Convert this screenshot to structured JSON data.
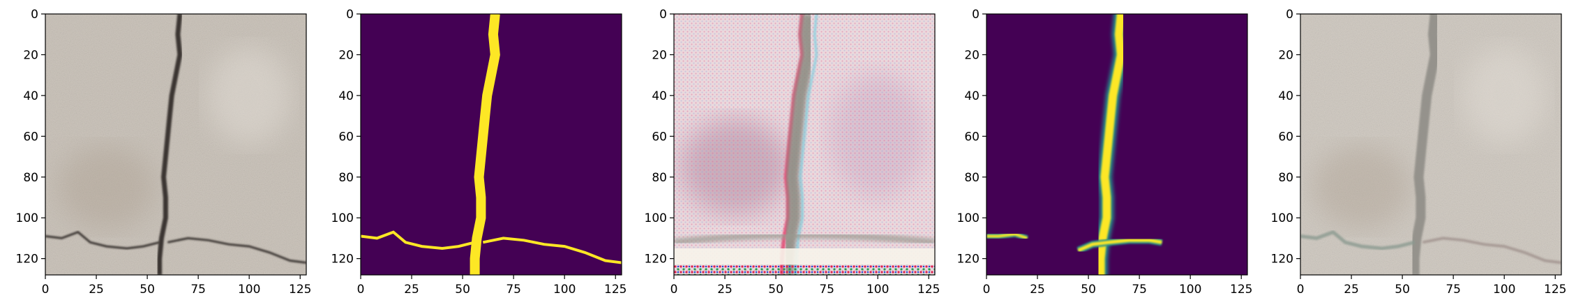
{
  "figure": {
    "panels": [
      {
        "id": "input-image",
        "kind": "photo"
      },
      {
        "id": "ground-truth-mask",
        "kind": "mask"
      },
      {
        "id": "generated-image",
        "kind": "generated"
      },
      {
        "id": "predicted-mask",
        "kind": "prediction"
      },
      {
        "id": "reconstructed-image",
        "kind": "reconstruction"
      }
    ],
    "axes": {
      "x_range": [
        0,
        128
      ],
      "y_range": [
        0,
        128
      ],
      "x_ticks": [
        "0",
        "25",
        "50",
        "75",
        "100",
        "125"
      ],
      "y_ticks": [
        "0",
        "20",
        "40",
        "60",
        "80",
        "100",
        "120"
      ]
    },
    "colors": {
      "mask_background": "#440154",
      "mask_foreground": "#fde725",
      "mask_mid": "#21918c",
      "concrete": "#cdc6bd",
      "crack": "#3a3430"
    }
  }
}
